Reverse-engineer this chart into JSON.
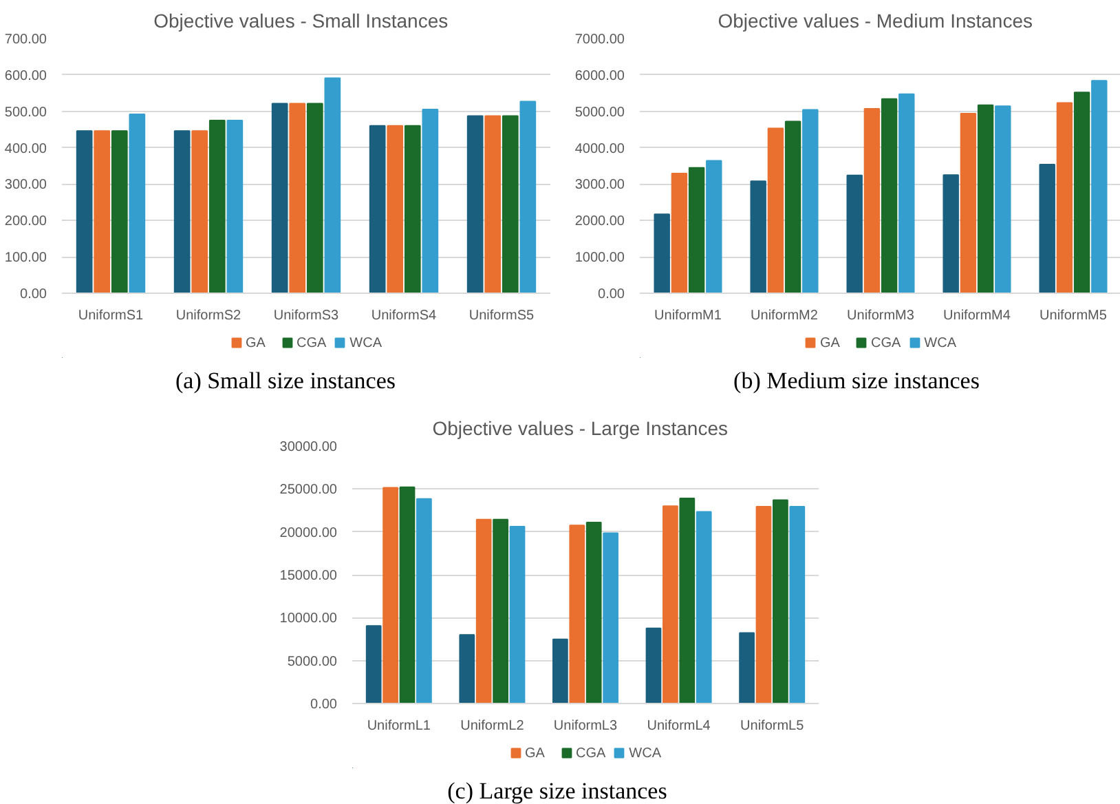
{
  "chart_data": [
    {
      "type": "bar",
      "title": "Objective values  -  Small Instances",
      "categories": [
        "UniformS1",
        "UniformS2",
        "UniformS3",
        "UniformS4",
        "UniformS5"
      ],
      "series": [
        {
          "color": "#1b5f7f",
          "values": [
            446,
            446,
            521,
            460,
            487
          ]
        },
        {
          "name": "GA",
          "color": "#e9702f",
          "values": [
            446,
            446,
            521,
            460,
            487
          ]
        },
        {
          "name": "CGA",
          "color": "#1b6b2a",
          "values": [
            446,
            475,
            521,
            460,
            487
          ]
        },
        {
          "name": "WCA",
          "color": "#349fcf",
          "values": [
            492,
            475,
            591,
            505,
            527
          ]
        }
      ],
      "ylim": [
        0,
        700
      ],
      "yticks": [
        {
          "value": 0,
          "label": "0.00"
        },
        {
          "value": 100,
          "label": "100.00"
        },
        {
          "value": 200,
          "label": "200.00"
        },
        {
          "value": 300,
          "label": "300.00"
        },
        {
          "value": 400,
          "label": "400.00"
        },
        {
          "value": 500,
          "label": "500.00"
        },
        {
          "value": 600,
          "label": "600.00"
        },
        {
          "value": 700,
          "label": "700.00"
        }
      ],
      "grid": "y",
      "legend": "bottom",
      "annotations": [
        "(a) Small size instances"
      ]
    },
    {
      "type": "bar",
      "title": "Objective values  -  Medium Instances",
      "categories": [
        "UniformM1",
        "UniformM2",
        "UniformM3",
        "UniformM4",
        "UniformM5"
      ],
      "series": [
        {
          "color": "#1b5f7f",
          "values": [
            2170,
            3080,
            3240,
            3250,
            3540
          ]
        },
        {
          "name": "GA",
          "color": "#e9702f",
          "values": [
            3290,
            4530,
            5070,
            4940,
            5230
          ]
        },
        {
          "name": "CGA",
          "color": "#1b6b2a",
          "values": [
            3450,
            4720,
            5340,
            5170,
            5520
          ]
        },
        {
          "name": "WCA",
          "color": "#349fcf",
          "values": [
            3640,
            5040,
            5470,
            5140,
            5840
          ]
        }
      ],
      "ylim": [
        0,
        7000
      ],
      "yticks": [
        {
          "value": 0,
          "label": "0.00"
        },
        {
          "value": 1000,
          "label": "1000.00"
        },
        {
          "value": 2000,
          "label": "2000.00"
        },
        {
          "value": 3000,
          "label": "3000.00"
        },
        {
          "value": 4000,
          "label": "4000.00"
        },
        {
          "value": 5000,
          "label": "5000.00"
        },
        {
          "value": 6000,
          "label": "6000.00"
        },
        {
          "value": 7000,
          "label": "7000.00"
        }
      ],
      "grid": "y",
      "legend": "bottom",
      "annotations": [
        "(b) Medium size instances"
      ]
    },
    {
      "type": "bar",
      "title": "Objective values  -  Large Instances",
      "categories": [
        "UniformL1",
        "UniformL2",
        "UniformL3",
        "UniformL4",
        "UniformL5"
      ],
      "series": [
        {
          "color": "#1b5f7f",
          "values": [
            9040,
            8010,
            7470,
            8770,
            8220
          ]
        },
        {
          "name": "GA",
          "color": "#e9702f",
          "values": [
            25140,
            21440,
            20750,
            23010,
            22950
          ]
        },
        {
          "name": "CGA",
          "color": "#1b6b2a",
          "values": [
            25200,
            21440,
            21100,
            23900,
            23700
          ]
        },
        {
          "name": "WCA",
          "color": "#349fcf",
          "values": [
            23840,
            20620,
            19860,
            22330,
            22950
          ]
        }
      ],
      "ylim": [
        0,
        30000
      ],
      "yticks": [
        {
          "value": 0,
          "label": "0.00"
        },
        {
          "value": 5000,
          "label": "5000.00"
        },
        {
          "value": 10000,
          "label": "10000.00"
        },
        {
          "value": 15000,
          "label": "15000.00"
        },
        {
          "value": 20000,
          "label": "20000.00"
        },
        {
          "value": 25000,
          "label": "25000.00"
        },
        {
          "value": 30000,
          "label": "30000.00"
        }
      ],
      "grid": "y",
      "legend": "bottom",
      "annotations": [
        "(c) Large size instances"
      ]
    }
  ]
}
